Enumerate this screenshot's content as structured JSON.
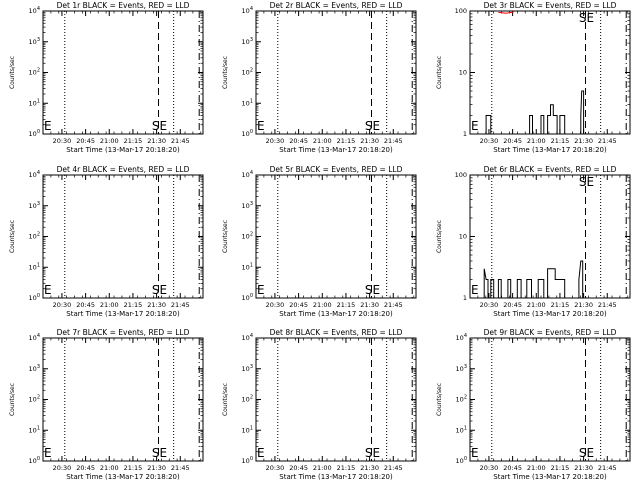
{
  "chart_data": [
    {
      "type": "line",
      "title": "Det 1r BLACK = Events, RED = LLD",
      "xlabel": "Start Time (13-Mar-17 20:18:20)",
      "ylabel": "Counts/sec",
      "yscale": "log",
      "xlim": [
        20.3,
        21.99
      ],
      "ylim": [
        1,
        10000
      ],
      "xticks": [
        "20:30",
        "20:45",
        "21:00",
        "21:15",
        "21:30",
        "21:45"
      ],
      "yticks": [
        "10^0",
        "10^1",
        "10^2",
        "10^3",
        "10^4"
      ],
      "lines": {
        "dotted": 20.53,
        "dashed": 21.52,
        "dotted2": 21.68,
        "dashdot": 21.95
      },
      "markers": [
        "E",
        "S",
        "E"
      ],
      "series": []
    },
    {
      "type": "line",
      "title": "Det 2r BLACK = Events, RED = LLD",
      "xlabel": "Start Time (13-Mar-17 20:18:20)",
      "ylabel": "Counts/sec",
      "yscale": "log",
      "xlim": [
        20.3,
        21.99
      ],
      "ylim": [
        1,
        10000
      ],
      "xticks": [
        "20:30",
        "20:45",
        "21:00",
        "21:15",
        "21:30",
        "21:45"
      ],
      "yticks": [
        "10^0",
        "10^1",
        "10^2",
        "10^3",
        "10^4"
      ],
      "lines": {
        "dotted": 20.53,
        "dashed": 21.52,
        "dotted2": 21.68,
        "dashdot": 21.95
      },
      "markers": [
        "E",
        "S",
        "E"
      ],
      "series": []
    },
    {
      "type": "line",
      "title": "Det 3r BLACK = Events, RED = LLD",
      "xlabel": "Start Time (13-Mar-17 20:18:20)",
      "ylabel": "Counts/sec",
      "yscale": "log",
      "xlim": [
        20.3,
        21.99
      ],
      "ylim": [
        1,
        100
      ],
      "xticks": [
        "20:30",
        "20:45",
        "21:00",
        "21:15",
        "21:30",
        "21:45"
      ],
      "yticks": [
        "1",
        "10",
        "100"
      ],
      "lines": {
        "dotted": 20.53,
        "dashed": 21.52,
        "dotted2": 21.68,
        "dashdot": 21.95
      },
      "markers": [
        "E",
        "S",
        "E"
      ],
      "series": [
        {
          "color": "#000000",
          "points": [
            [
              20.3,
              1
            ],
            [
              20.47,
              1
            ],
            [
              20.47,
              2
            ],
            [
              20.52,
              2
            ],
            [
              20.52,
              1
            ],
            [
              20.93,
              1
            ],
            [
              20.93,
              2
            ],
            [
              20.96,
              2
            ],
            [
              20.96,
              1
            ],
            [
              21.05,
              1
            ],
            [
              21.05,
              2
            ],
            [
              21.08,
              2
            ],
            [
              21.08,
              1
            ],
            [
              21.12,
              1
            ],
            [
              21.12,
              2
            ],
            [
              21.15,
              2
            ],
            [
              21.15,
              3
            ],
            [
              21.18,
              3
            ],
            [
              21.18,
              2
            ],
            [
              21.22,
              2
            ],
            [
              21.22,
              1
            ],
            [
              21.25,
              1
            ],
            [
              21.25,
              2
            ],
            [
              21.3,
              2
            ],
            [
              21.3,
              1
            ],
            [
              21.47,
              1
            ],
            [
              21.47,
              2
            ],
            [
              21.48,
              5
            ],
            [
              21.5,
              5
            ],
            [
              21.5,
              1
            ],
            [
              21.99,
              1
            ]
          ]
        },
        {
          "color": "#ff0000",
          "points": [
            [
              20.6,
              95
            ],
            [
              20.68,
              92
            ],
            [
              20.76,
              96
            ]
          ]
        }
      ]
    },
    {
      "type": "line",
      "title": "Det 4r BLACK = Events, RED = LLD",
      "xlabel": "Start Time (13-Mar-17 20:18:20)",
      "ylabel": "Counts/sec",
      "yscale": "log",
      "xlim": [
        20.3,
        21.99
      ],
      "ylim": [
        1,
        10000
      ],
      "xticks": [
        "20:30",
        "20:45",
        "21:00",
        "21:15",
        "21:30",
        "21:45"
      ],
      "yticks": [
        "10^0",
        "10^1",
        "10^2",
        "10^3",
        "10^4"
      ],
      "lines": {
        "dotted": 20.53,
        "dashed": 21.52,
        "dotted2": 21.68,
        "dashdot": 21.95
      },
      "markers": [
        "E",
        "S",
        "E"
      ],
      "series": []
    },
    {
      "type": "line",
      "title": "Det 5r BLACK = Events, RED = LLD",
      "xlabel": "Start Time (13-Mar-17 20:18:20)",
      "ylabel": "Counts/sec",
      "yscale": "log",
      "xlim": [
        20.3,
        21.99
      ],
      "ylim": [
        1,
        10000
      ],
      "xticks": [
        "20:30",
        "20:45",
        "21:00",
        "21:15",
        "21:30",
        "21:45"
      ],
      "yticks": [
        "10^0",
        "10^1",
        "10^2",
        "10^3",
        "10^4"
      ],
      "lines": {
        "dotted": 20.53,
        "dashed": 21.52,
        "dotted2": 21.68,
        "dashdot": 21.95
      },
      "markers": [
        "E",
        "S",
        "E"
      ],
      "series": []
    },
    {
      "type": "line",
      "title": "Det 6r BLACK = Events, RED = LLD",
      "xlabel": "Start Time (13-Mar-17 20:18:20)",
      "ylabel": "Counts/sec",
      "yscale": "log",
      "xlim": [
        20.3,
        21.99
      ],
      "ylim": [
        1,
        100
      ],
      "xticks": [
        "20:30",
        "20:45",
        "21:00",
        "21:15",
        "21:30",
        "21:45"
      ],
      "yticks": [
        "1",
        "10",
        "100"
      ],
      "lines": {
        "dotted": 20.53,
        "dashed": 21.52,
        "dotted2": 21.68,
        "dashdot": 21.95
      },
      "markers": [
        "E",
        "S",
        "E"
      ],
      "series": [
        {
          "color": "#000000",
          "points": [
            [
              20.3,
              1
            ],
            [
              20.45,
              1
            ],
            [
              20.45,
              3
            ],
            [
              20.47,
              2
            ],
            [
              20.49,
              2
            ],
            [
              20.49,
              1
            ],
            [
              20.52,
              1
            ],
            [
              20.52,
              2
            ],
            [
              20.55,
              2
            ],
            [
              20.55,
              1
            ],
            [
              20.6,
              1
            ],
            [
              20.6,
              2
            ],
            [
              20.63,
              2
            ],
            [
              20.63,
              1
            ],
            [
              20.7,
              1
            ],
            [
              20.7,
              2
            ],
            [
              20.73,
              2
            ],
            [
              20.73,
              1
            ],
            [
              20.8,
              1
            ],
            [
              20.8,
              2
            ],
            [
              20.84,
              2
            ],
            [
              20.84,
              1
            ],
            [
              20.9,
              1
            ],
            [
              20.9,
              2
            ],
            [
              20.95,
              2
            ],
            [
              20.95,
              1
            ],
            [
              21.02,
              1
            ],
            [
              21.02,
              2
            ],
            [
              21.08,
              2
            ],
            [
              21.08,
              1
            ],
            [
              21.12,
              1
            ],
            [
              21.12,
              3
            ],
            [
              21.2,
              3
            ],
            [
              21.2,
              2
            ],
            [
              21.3,
              2
            ],
            [
              21.3,
              1
            ],
            [
              21.45,
              1
            ],
            [
              21.45,
              2
            ],
            [
              21.47,
              4
            ],
            [
              21.49,
              4
            ],
            [
              21.49,
              1
            ],
            [
              21.99,
              1
            ]
          ]
        }
      ]
    },
    {
      "type": "line",
      "title": "Det 7r BLACK = Events, RED = LLD",
      "xlabel": "Start Time (13-Mar-17 20:18:20)",
      "ylabel": "Counts/sec",
      "yscale": "log",
      "xlim": [
        20.3,
        21.99
      ],
      "ylim": [
        1,
        10000
      ],
      "xticks": [
        "20:30",
        "20:45",
        "21:00",
        "21:15",
        "21:30",
        "21:45"
      ],
      "yticks": [
        "10^0",
        "10^1",
        "10^2",
        "10^3",
        "10^4"
      ],
      "lines": {
        "dotted": 20.53,
        "dashed": 21.52,
        "dotted2": 21.68,
        "dashdot": 21.95
      },
      "markers": [
        "E",
        "S",
        "E"
      ],
      "series": []
    },
    {
      "type": "line",
      "title": "Det 8r BLACK = Events, RED = LLD",
      "xlabel": "Start Time (13-Mar-17 20:18:20)",
      "ylabel": "Counts/sec",
      "yscale": "log",
      "xlim": [
        20.3,
        21.99
      ],
      "ylim": [
        1,
        10000
      ],
      "xticks": [
        "20:30",
        "20:45",
        "21:00",
        "21:15",
        "21:30",
        "21:45"
      ],
      "yticks": [
        "10^0",
        "10^1",
        "10^2",
        "10^3",
        "10^4"
      ],
      "lines": {
        "dotted": 20.53,
        "dashed": 21.52,
        "dotted2": 21.68,
        "dashdot": 21.95
      },
      "markers": [
        "E",
        "S",
        "E"
      ],
      "series": []
    },
    {
      "type": "line",
      "title": "Det 9r BLACK = Events, RED = LLD",
      "xlabel": "Start Time (13-Mar-17 20:18:20)",
      "ylabel": "Counts/sec",
      "yscale": "log",
      "xlim": [
        20.3,
        21.99
      ],
      "ylim": [
        1,
        10000
      ],
      "xticks": [
        "20:30",
        "20:45",
        "21:00",
        "21:15",
        "21:30",
        "21:45"
      ],
      "yticks": [
        "10^0",
        "10^1",
        "10^2",
        "10^3",
        "10^4"
      ],
      "lines": {
        "dotted": 20.53,
        "dashed": 21.52,
        "dotted2": 21.68,
        "dashdot": 21.95
      },
      "markers": [
        "E",
        "S",
        "E"
      ],
      "series": []
    }
  ]
}
